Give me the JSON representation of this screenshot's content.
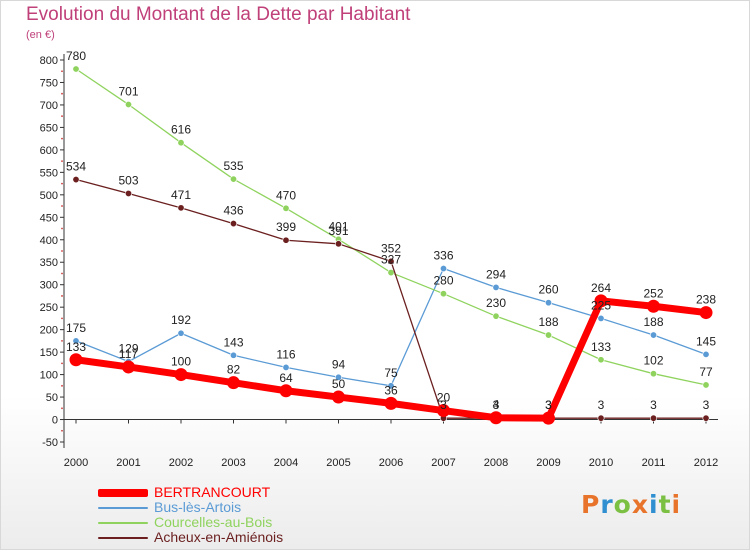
{
  "header": {
    "title": "Evolution du Montant de la Dette par Habitant",
    "unit": "(en €)"
  },
  "brand": {
    "text": "Proxiti",
    "colors": [
      "#e8742c",
      "#2f8fd0",
      "#7bc043",
      "#e8742c",
      "#2f8fd0",
      "#7bc043",
      "#e8742c"
    ]
  },
  "chart_data": {
    "type": "line",
    "title": "Evolution du Montant de la Dette par Habitant",
    "ylabel": "(en €)",
    "xlabel": "",
    "x": [
      2000,
      2001,
      2002,
      2003,
      2004,
      2005,
      2006,
      2007,
      2008,
      2009,
      2010,
      2011,
      2012
    ],
    "ylim": [
      -50,
      800
    ],
    "yticks": [
      -50,
      0,
      50,
      100,
      150,
      200,
      250,
      300,
      350,
      400,
      450,
      500,
      550,
      600,
      650,
      700,
      750,
      800
    ],
    "grid": false,
    "legend_position": "bottom-left",
    "series": [
      {
        "name": "BERTRANCOURT",
        "color": "#ff0000",
        "emphasis": true,
        "values": [
          133,
          117,
          100,
          82,
          64,
          50,
          36,
          20,
          4,
          3,
          264,
          252,
          238
        ],
        "labels": [
          "133",
          "117",
          "100",
          "82",
          "64",
          "50",
          "36",
          "20",
          "4",
          "3",
          "264",
          "252",
          "238"
        ]
      },
      {
        "name": "Bus-lès-Artois",
        "color": "#5b9bd5",
        "emphasis": false,
        "values": [
          175,
          129,
          192,
          143,
          116,
          94,
          75,
          336,
          294,
          260,
          225,
          188,
          145
        ],
        "labels": [
          "175",
          "129",
          "192",
          "143",
          "116",
          "94",
          "75",
          "336",
          "294",
          "260",
          "225",
          "188",
          "145"
        ]
      },
      {
        "name": "Courcelles-au-Bois",
        "color": "#8fd35e",
        "emphasis": false,
        "values": [
          780,
          701,
          616,
          535,
          470,
          401,
          327,
          280,
          230,
          188,
          133,
          102,
          77
        ],
        "labels": [
          "780",
          "701",
          "616",
          "535",
          "470",
          "401",
          "327",
          "280",
          "230",
          "188",
          "133",
          "102",
          "77"
        ]
      },
      {
        "name": "Acheux-en-Amiénois",
        "color": "#6b1f1f",
        "emphasis": false,
        "values": [
          534,
          503,
          471,
          436,
          399,
          391,
          352,
          3,
          3,
          3,
          3,
          3,
          3
        ],
        "labels": [
          "534",
          "503",
          "471",
          "436",
          "399",
          "391",
          "352",
          "3",
          "3",
          "3",
          "3",
          "3",
          "3"
        ]
      }
    ]
  }
}
